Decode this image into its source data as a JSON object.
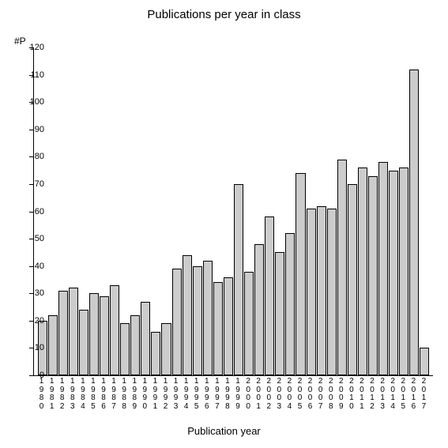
{
  "chart": {
    "type": "bar",
    "title": "Publications per year in class",
    "title_fontsize": 15,
    "ylabel": "#P",
    "ylabel_fontsize": 12,
    "xaxis_title": "Publication year",
    "xaxis_title_fontsize": 13,
    "ylim": [
      0,
      120
    ],
    "ytick_step": 10,
    "yticks": [
      0,
      10,
      20,
      30,
      40,
      50,
      60,
      70,
      80,
      90,
      100,
      110,
      120
    ],
    "categories": [
      "1980",
      "1981",
      "1982",
      "1983",
      "1984",
      "1985",
      "1986",
      "1987",
      "1988",
      "1989",
      "1990",
      "1991",
      "1992",
      "1993",
      "1994",
      "1995",
      "1996",
      "1997",
      "1998",
      "1999",
      "2000",
      "2001",
      "2002",
      "2003",
      "2004",
      "2005",
      "2006",
      "2007",
      "2008",
      "2009",
      "2010",
      "2011",
      "2012",
      "2013",
      "2014",
      "2015",
      "2016",
      "2017"
    ],
    "values": [
      20,
      22,
      31,
      32,
      24,
      30,
      29,
      33,
      19,
      22,
      27,
      16,
      19,
      39,
      44,
      40,
      42,
      34,
      36,
      70,
      38,
      48,
      58,
      45,
      52,
      74,
      61,
      62,
      61,
      79,
      70,
      76,
      73,
      78,
      75,
      76,
      112,
      10
    ],
    "bar_color": "#cccccc",
    "bar_border_color": "#000000",
    "background_color": "#ffffff",
    "axis_color": "#000000",
    "tick_label_fontsize": 11,
    "xtick_label_fontsize": 10,
    "bar_width_ratio": 0.92
  }
}
